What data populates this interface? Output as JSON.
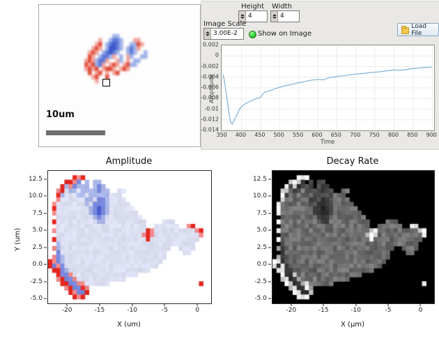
{
  "scan_panel": {
    "scale_bar_label": "10um",
    "blob_grid": {
      "cols": 26,
      "jitter": 0,
      "palette": {
        "r": "#f2a49b",
        "R": "#e04a38",
        "b": "#9fb3e8",
        "B": "#5d79d8",
        "D": "#3b55c8"
      },
      "rows": [
        "..........................",
        "..........bb..............",
        "......r..bBBb...rr........",
        ".....rR.bBDBb..bbRr.......",
        "....rRr.bDDBb.bBbr........",
        "...rRr.bBDBb..bBb..b......",
        "...Rr.bBBbr.b.rb..bb......",
        "..rRrbBBr..rb.r.bb........",
        "..RrRbBr.rRr.rRbb.........",
        "..rRrR.rRRr.rRr...........",
        "...R.rR.r.rR..............",
        "....rR..R.................",
        ".....r....................",
        "..........................",
        "..........................",
        "..........................",
        "..........................",
        ".........................."
      ]
    }
  },
  "controls": {
    "height_label": "Height",
    "height_value": "4",
    "width_label": "Width",
    "width_value": "4",
    "image_scale_label": "Image Scale",
    "image_scale_value": "3.00E-2",
    "show_on_image_label": "Show on Image",
    "led_color": "#12c312",
    "load_file_label": "Load File"
  },
  "chart_data": [
    {
      "id": "response-curve",
      "type": "line",
      "title": "",
      "xlabel": "Time",
      "ylabel": "Amplitude",
      "xlim": [
        348,
        905
      ],
      "ylim": [
        -0.014,
        0.002
      ],
      "xticks": [
        350,
        400,
        450,
        500,
        550,
        600,
        650,
        700,
        750,
        800,
        850,
        900
      ],
      "yticks": [
        0.002,
        0,
        -0.002,
        -0.004,
        -0.006,
        -0.008,
        -0.01,
        -0.012,
        -0.014
      ],
      "ytick_labels": [
        "0.002",
        "0",
        "-0.002",
        "-0.004",
        "-0.006",
        "-0.008",
        "-0.01",
        "-0.012",
        "-0.014"
      ],
      "line_color": "#7fb0d6",
      "grid_on": true,
      "x": [
        352,
        356,
        360,
        364,
        368,
        372,
        376,
        380,
        385,
        390,
        395,
        400,
        410,
        420,
        430,
        440,
        450,
        455,
        460,
        470,
        480,
        490,
        500,
        515,
        530,
        545,
        560,
        580,
        600,
        615,
        630,
        645,
        660,
        680,
        700,
        720,
        740,
        760,
        780,
        800,
        815,
        830,
        845,
        860,
        875,
        890,
        900
      ],
      "y": [
        -0.0035,
        -0.005,
        -0.007,
        -0.009,
        -0.011,
        -0.0125,
        -0.0128,
        -0.0122,
        -0.0115,
        -0.0108,
        -0.01,
        -0.0095,
        -0.009,
        -0.0086,
        -0.0083,
        -0.008,
        -0.0078,
        -0.0072,
        -0.0069,
        -0.0066,
        -0.0064,
        -0.0061,
        -0.0059,
        -0.0056,
        -0.0054,
        -0.0051,
        -0.0049,
        -0.0046,
        -0.0044,
        -0.0045,
        -0.0041,
        -0.0039,
        -0.0038,
        -0.0036,
        -0.0034,
        -0.0033,
        -0.0031,
        -0.003,
        -0.0028,
        -0.0026,
        -0.0027,
        -0.0026,
        -0.0024,
        -0.0023,
        -0.0022,
        -0.0021,
        -0.0021
      ]
    },
    {
      "id": "amplitude-map",
      "type": "heatmap",
      "title": "Amplitude",
      "xlabel": "X (um)",
      "ylabel": "Y (um)",
      "colormap": "bwr",
      "xlim": [
        -23,
        2
      ],
      "ylim": [
        -5.6,
        13.8
      ],
      "xticks": [
        -20,
        -15,
        -10,
        -5,
        0
      ],
      "xtick_labels": [
        "-20",
        "-15",
        "-10",
        "-5",
        "0"
      ],
      "yticks": [
        12.5,
        10.0,
        7.5,
        5.0,
        2.5,
        0.0,
        -2.5,
        -5.0
      ],
      "ytick_labels": [
        "12.5",
        "10.0",
        "7.5",
        "5.0",
        "2.5",
        "0.0",
        "-2.5",
        "-5.0"
      ],
      "grid": {
        "cols": 40,
        "bg": "#ffffff",
        "jitter": 0.07,
        "palette": {
          "a": "#dcdff2",
          "b": "#aab6e8",
          "B": "#7787dd",
          "D": "#4a5ed0",
          "r": "#ee8888",
          "R": "#e3261f"
        },
        "rows": [
          "........................................",
          "......RrR...............................",
          "....RRrB.b.bb...........................",
          "...RbrBbbb.bBb..........................",
          "..rRabbabbbbBbb..aa.....................",
          "..Rbaaabbabbbbbaaa......................",
          "..raaaaaabbaBBbaaaa.....................",
          ".raaaaaaabaBBBbaaaaa....................",
          ".RaaaaaaaabBDBbaaaaaa...................",
          ".raaaaaaaabBDBbaaaaaaa..................",
          "..aaaaaaaaabBbaaaaaaaaa.................",
          ".Raaaaaaaaaabbaaaaaaaaaa....aaa.........",
          "..aaaaaaaaaaaaaaaaaaaaaa..aaaaaa..rR....",
          ".raaaaaaaaaaaaaaaaaaaaaaRraaaaaaaaaarR..",
          "..aaaaaaaaaaaaaaaaaaaaarRraaaaaaaaaaar..",
          ".RaaaaaaaaaaaaaaaaaaaaaaRaaaaaaaaaaaa...",
          "..baaaaaaaaaaaaaaaaaaaaaaaaaaaaaaaaa....",
          ".rbaaaaaaaaaaaaaaaaaaaaaaaaaaa..aaaa....",
          "..Baaaaaaaaaaaaaaaaaaaaaaaaaa....aa.....",
          ".rBbaaaaaaaaaaaaaaaaaaaaaaaaa...........",
          "RrBbaaaaaaaaaaaaaaaaaaaaaaaa............",
          "RBrBaaaaaaaaaaaaaaaaaaaaaaa.............",
          ".RRBbaaaaaaaaaaaaaaaaaaaa...............",
          "..RBBraaaaaaaaaaaaaaaa..................",
          "..rRBBraaaaaaaaaaaa.....................",
          "...RRBBrraaaaaa......................R..",
          "....rRBBRr..............................",
          ".....RrBBR..............................",
          "......RrR...............................",
          "........................................"
        ]
      }
    },
    {
      "id": "decay-map",
      "type": "heatmap",
      "title": "Decay Rate",
      "xlabel": "X (µm)",
      "ylabel": "",
      "colormap": "gray",
      "xlim": [
        -23,
        2
      ],
      "ylim": [
        -5.6,
        13.8
      ],
      "xticks": [
        -20,
        -15,
        -10,
        -5,
        0
      ],
      "xtick_labels": [
        "-20",
        "-15",
        "-10",
        "-5",
        "0"
      ],
      "yticks": [
        12.5,
        10.0,
        7.5,
        5.0,
        2.5,
        0.0,
        -2.5,
        -5.0
      ],
      "ytick_labels": [
        "12.5",
        "10.0",
        "7.5",
        "5.0",
        "2.5",
        "0.0",
        "-2.5",
        "-5.0"
      ],
      "grid": {
        "cols": 40,
        "bg": "#000000",
        "jitter": 0.45,
        "palette": {
          "a": "#6e6e6e",
          "b": "#4a4a4a",
          "B": "#333333",
          "D": "#262626",
          "r": "#c8c8c8",
          "R": "#f2f2f2"
        },
        "rows": [
          "........................................",
          "......RrR...............................",
          "....RRrB.b.bb...........................",
          "...RbrBbbb.bBb..........................",
          "..rRabbabbbbBbb..aa.....................",
          "..Rbaaabbabbbbbaaa......................",
          "..raaaaaabbaBBbaaaa.....................",
          ".raaaaaaabaBBBbaaaaa....................",
          ".RaaaaaaaabBDBbaaaaaa...................",
          ".raaaaaaaabBDBbaaaaaaa..................",
          "..aaaaaaaaabBbaaaaaaaaa.................",
          ".Raaaaaaaaaabbaaaaaaaaaa....aaa.........",
          "..aaaaaaaaaaaaaaaaaaaaaa..aaaaaa..rR....",
          ".raaaaaaaaaaaaaaaaaaaaaaRraaaaaaaaaarR..",
          "..aaaaaaaaaaaaaaaaaaaaarRraaaaaaaaaaar..",
          ".RaaaaaaaaaaaaaaaaaaaaaaRaaaaaaaaaaaa...",
          "..baaaaaaaaaaaaaaaaaaaaaaaaaaaaaaaaa....",
          ".rbaaaaaaaaaaaaaaaaaaaaaaaaaaa..aaaa....",
          "..Baaaaaaaaaaaaaaaaaaaaaaaaaa....aa.....",
          ".rBbaaaaaaaaaaaaaaaaaaaaaaaaa...........",
          "RrBbaaaaaaaaaaaaaaaaaaaaaaaa............",
          "RBrBaaaaaaaaaaaaaaaaaaaaaaa.............",
          ".RRBbaaaaaaaaaaaaaaaaaaaa...............",
          "..RBBraaaaaaaaaaaaaaaa..................",
          "..rRBBraaaaaaaaaaaa.....................",
          "...RRBBrraaaaaa......................R..",
          "....rRBBRr..............................",
          ".....RrBBR..............................",
          "......RrR...............................",
          "........................................"
        ]
      }
    }
  ]
}
